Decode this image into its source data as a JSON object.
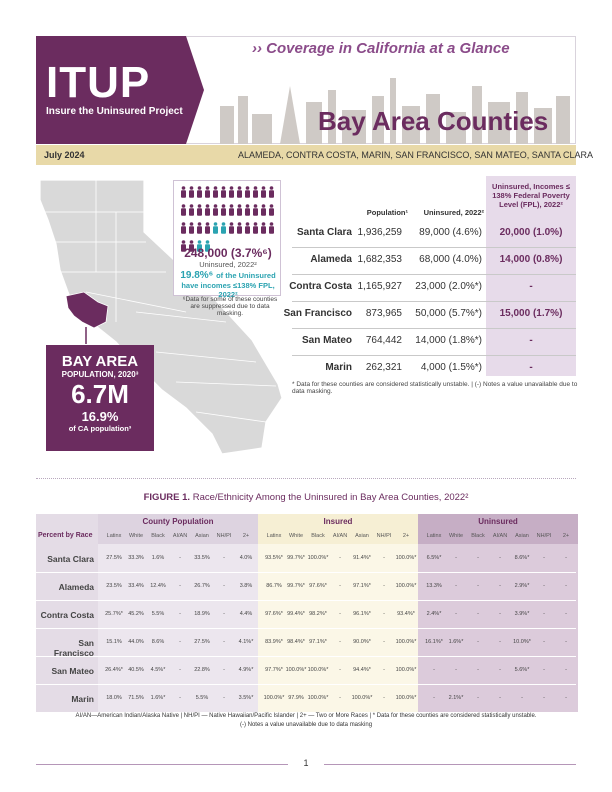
{
  "header": {
    "logo": "ITUP",
    "logo_subtitle": "Insure the Uninsured Project",
    "kicker": "›› Coverage in California at a Glance",
    "title": "Bay Area Counties",
    "date": "July 2024",
    "counties": "ALAMEDA, CONTRA COSTA, MARIN, SAN FRANCISCO, SAN MATEO, SANTA CLARA"
  },
  "colors": {
    "brand_purple": "#6b2c5f",
    "light_purple": "#e7dbea",
    "teal": "#2ba3b1",
    "gold_bar": "#e8d9a8"
  },
  "bay_area": {
    "title": "BAY AREA",
    "population_label": "POPULATION, 2020³",
    "population": "6.7M",
    "pct": "16.9%",
    "pct_label": "of CA population³"
  },
  "uninsured_summary": {
    "icons_total": 40,
    "icons_highlighted": 8,
    "count": "248,000 (3.7%⁶)",
    "count_label": "Uninsured, 2022²",
    "fpl_pct": "19.8%⁶",
    "fpl_label_1": "of the Uninsured",
    "fpl_label_2": "have incomes ≤138% FPL, 2022²",
    "note": "⁶Data for some of these counties are suppressed due to data masking."
  },
  "county_table": {
    "headers": {
      "population": "Population¹",
      "uninsured": "Uninsured, 2022²",
      "fpl": "Uninsured, Incomes ≤ 138% Federal Poverty Level (FPL), 2022²"
    },
    "rows": [
      {
        "county": "Santa Clara",
        "population": "1,936,259",
        "uninsured": "89,000 (4.6%)",
        "fpl": "20,000 (1.0%)"
      },
      {
        "county": "Alameda",
        "population": "1,682,353",
        "uninsured": "68,000 (4.0%)",
        "fpl": "14,000 (0.8%)"
      },
      {
        "county": "Contra Costa",
        "population": "1,165,927",
        "uninsured": "23,000 (2.0%*)",
        "fpl": "-"
      },
      {
        "county": "San Francisco",
        "population": "873,965",
        "uninsured": "50,000 (5.7%*)",
        "fpl": "15,000 (1.7%)"
      },
      {
        "county": "San Mateo",
        "population": "764,442",
        "uninsured": "14,000 (1.8%*)",
        "fpl": "-"
      },
      {
        "county": "Marin",
        "population": "262,321",
        "uninsured": "4,000 (1.5%*)",
        "fpl": "-"
      }
    ],
    "note": "* Data for these counties are considered statistically unstable. | (-) Notes a value unavailable due to data masking."
  },
  "figure1": {
    "label": "FIGURE 1.",
    "title": "Race/Ethnicity Among the Uninsured in Bay Area Counties, 2022²",
    "row_header": "Percent by Race",
    "groups": [
      "County Population",
      "Insured",
      "Uninsured"
    ],
    "subheaders": [
      "Latinx",
      "White",
      "Black",
      "AI/AN",
      "Asian",
      "NH/PI",
      "2+"
    ],
    "rows": [
      {
        "county": "Santa Clara",
        "pop": [
          "27.5%",
          "33.3%",
          "1.6%",
          "-",
          "33.5%",
          "-",
          "4.0%"
        ],
        "ins": [
          "93.5%*",
          "99.7%*",
          "100.0%*",
          "-",
          "91.4%*",
          "-",
          "100.0%*"
        ],
        "unins": [
          "6.5%*",
          "-",
          "-",
          "-",
          "8.6%*",
          "-",
          "-"
        ]
      },
      {
        "county": "Alameda",
        "pop": [
          "23.5%",
          "33.4%",
          "12.4%",
          "-",
          "26.7%",
          "-",
          "3.8%"
        ],
        "ins": [
          "86.7%",
          "99.7%*",
          "97.6%*",
          "-",
          "97.1%*",
          "-",
          "100.0%*"
        ],
        "unins": [
          "13.3%",
          "-",
          "-",
          "-",
          "2.9%*",
          "-",
          "-"
        ]
      },
      {
        "county": "Contra Costa",
        "pop": [
          "25.7%*",
          "45.2%",
          "5.5%",
          "-",
          "18.9%",
          "-",
          "4.4%"
        ],
        "ins": [
          "97.6%*",
          "99.4%*",
          "98.2%*",
          "-",
          "96.1%*",
          "-",
          "93.4%*"
        ],
        "unins": [
          "2.4%*",
          "-",
          "-",
          "-",
          "3.9%*",
          "-",
          "-"
        ]
      },
      {
        "county": "San Francisco",
        "pop": [
          "15.1%",
          "44.0%",
          "8.6%",
          "-",
          "27.5%",
          "-",
          "4.1%*"
        ],
        "ins": [
          "83.9%*",
          "98.4%*",
          "97.1%*",
          "-",
          "90.0%*",
          "-",
          "100.0%*"
        ],
        "unins": [
          "16.1%*",
          "1.6%*",
          "-",
          "-",
          "10.0%*",
          "-",
          "-"
        ]
      },
      {
        "county": "San Mateo",
        "pop": [
          "26.4%*",
          "40.5%",
          "4.5%*",
          "-",
          "22.8%",
          "-",
          "4.9%*"
        ],
        "ins": [
          "97.7%*",
          "100.0%*",
          "100.0%*",
          "-",
          "94.4%*",
          "-",
          "100.0%*"
        ],
        "unins": [
          "-",
          "-",
          "-",
          "-",
          "5.6%*",
          "-",
          "-"
        ]
      },
      {
        "county": "Marin",
        "pop": [
          "18.0%",
          "71.5%",
          "1.6%*",
          "-",
          "5.5%",
          "-",
          "3.5%*"
        ],
        "ins": [
          "100.0%*",
          "97.9%",
          "100.0%*",
          "-",
          "100.0%*",
          "-",
          "100.0%*"
        ],
        "unins": [
          "-",
          "2.1%*",
          "-",
          "-",
          "-",
          "-",
          "-"
        ]
      }
    ],
    "legend_1": "AI/AN—American Indian/Alaska Native | NH/PI — Native Hawaiian/Pacific Islander | 2+ — Two or More Races | * Data for these counties are considered statistically unstable.",
    "legend_2": "(-) Notes a value unavailable due to data masking"
  },
  "footer": {
    "page": "1"
  }
}
